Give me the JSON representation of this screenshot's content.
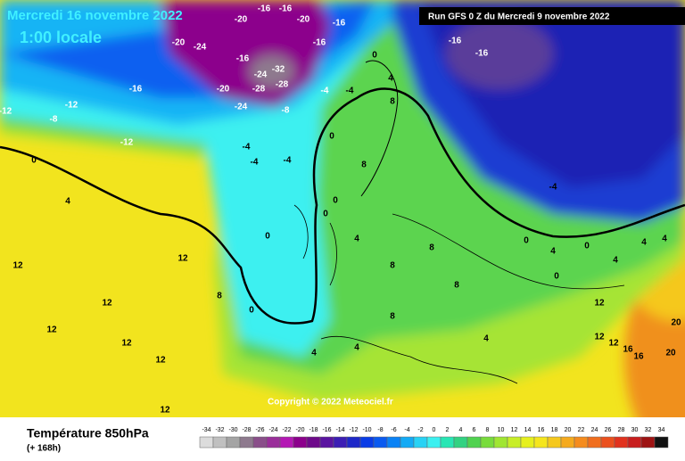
{
  "header": {
    "title": "Mercredi 16 novembre 2022",
    "subtitle": "1:00 locale",
    "run": "Run GFS 0 Z du Mercredi 9 novembre 2022"
  },
  "copyright": "Copyright © 2022 Meteociel.fr",
  "legend": {
    "title": "Température 850hPa",
    "lead": "(+ 168h)",
    "ticks": [
      -34,
      -32,
      -30,
      -28,
      -26,
      -24,
      -22,
      -20,
      -18,
      -16,
      -14,
      -12,
      -10,
      -8,
      -6,
      -4,
      -2,
      0,
      2,
      4,
      6,
      8,
      10,
      12,
      14,
      16,
      18,
      20,
      22,
      24,
      26,
      28,
      30,
      32,
      34
    ],
    "colors": [
      "#dcdcdc",
      "#c0c0c0",
      "#a4a4a4",
      "#8e7a8e",
      "#8a4f8a",
      "#9a2f9a",
      "#b418b4",
      "#8c008c",
      "#6e0a8a",
      "#5a14a0",
      "#3c1eb4",
      "#1e28c8",
      "#0a3ce6",
      "#0a5af0",
      "#0a82f5",
      "#14aaf5",
      "#28d2f5",
      "#3cf0f0",
      "#28e6b4",
      "#32d282",
      "#50d250",
      "#78dc3c",
      "#a0e632",
      "#c8ee28",
      "#e6f01e",
      "#f5e61e",
      "#f5c81e",
      "#f5aa1e",
      "#f58c1e",
      "#f06e1e",
      "#eb501e",
      "#e1321e",
      "#c81e1e",
      "#9e1414",
      "#111111"
    ]
  },
  "map_labels": [
    "-20",
    "-16",
    "-16",
    "-20",
    "-16",
    "-20",
    "-24",
    "-16",
    "-24",
    "-28",
    "-32",
    "-28",
    "-24",
    "-20",
    "-16",
    "-12",
    "-8",
    "-4",
    "-16",
    "-16",
    "-16",
    "-12",
    "-8",
    "-12",
    "-4",
    "0",
    "-4",
    "-4",
    "0",
    "0",
    "4",
    "4",
    "8",
    "8",
    "0",
    "4",
    "8",
    "8",
    "4",
    "0",
    "-4",
    "0",
    "0",
    "4",
    "8",
    "12",
    "12",
    "12",
    "12",
    "12",
    "12",
    "12",
    "8",
    "4",
    "4",
    "8",
    "12",
    "12",
    "16",
    "20",
    "20",
    "16",
    "12",
    "0",
    "0",
    "4",
    "-4",
    "4",
    "4",
    "0"
  ]
}
